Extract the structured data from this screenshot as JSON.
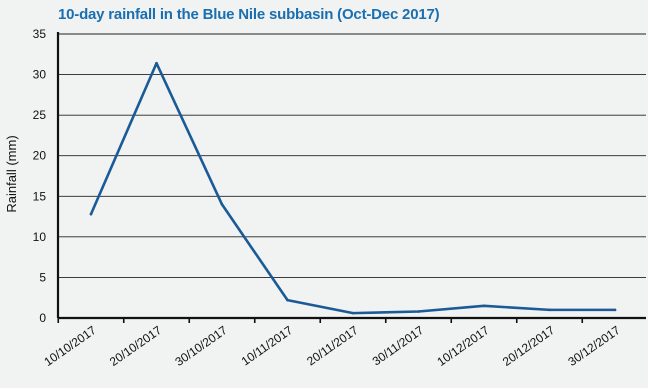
{
  "chart_data": {
    "type": "line",
    "title": "10-day rainfall in the Blue Nile subbasin (Oct-Dec 2017)",
    "xlabel": "",
    "ylabel": "Rainfall (mm)",
    "ylim": [
      0,
      35
    ],
    "yticks": [
      0,
      5,
      10,
      15,
      20,
      25,
      30,
      35
    ],
    "categories": [
      "10/10/2017",
      "20/10/2017",
      "30/10/2017",
      "10/11/2017",
      "20/11/2017",
      "30/11/2017",
      "10/12/2017",
      "20/12/2017",
      "30/12/2017"
    ],
    "series": [
      {
        "values": [
          12.8,
          31.4,
          14.0,
          2.2,
          0.6,
          0.8,
          1.5,
          1.0,
          1.0
        ]
      }
    ],
    "grid": "horizontal",
    "colors": {
      "title": "#1a6fb0",
      "line": "#1a5a96",
      "grid": "#222222",
      "background": "#f1f2f2"
    }
  }
}
